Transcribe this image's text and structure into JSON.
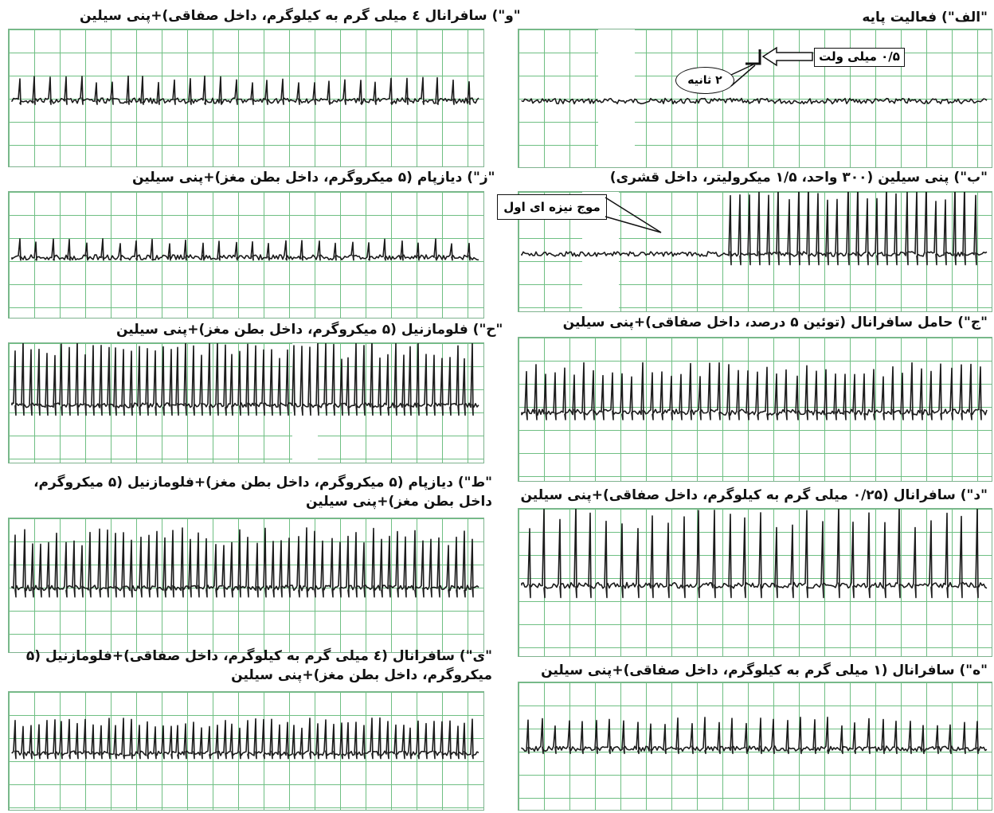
{
  "chart_data": {
    "type": "line",
    "panels": [
      {
        "id": "alef",
        "caption": "\"الف\") فعالیت پایه",
        "spikes": 0,
        "amp": 0.03
      },
      {
        "id": "be",
        "caption": "\"ب\") پنی سیلین (۳۰۰ واحد، ۱/۵ میکرولیتر، داخل قشری)",
        "spikes": 26,
        "amp": 0.6
      },
      {
        "id": "jim",
        "caption": "\"ج\") حامل سافرانال (توئین ۵ درصد، داخل صفاقی)+پنی سیلین",
        "spikes": 48,
        "amp": 0.35
      },
      {
        "id": "dal",
        "caption": "\"د\") سافرانال (۰/۲۵ میلی گرم به کیلوگرم، داخل صفاقی)+پنی سیلین",
        "spikes": 30,
        "amp": 0.55
      },
      {
        "id": "he",
        "caption": "\"ه\") سافرانال (۱ میلی گرم به کیلوگرم، داخل صفاقی)+پنی سیلین",
        "spikes": 34,
        "amp": 0.25
      },
      {
        "id": "vav",
        "caption": "\"و\") سافرانال ٤ میلی گرم به کیلوگرم، داخل صفاقی)+پنی سیلین",
        "spikes": 30,
        "amp": 0.18
      },
      {
        "id": "ze",
        "caption": "\"ز\") دیازپام (۵ میکروگرم، داخل بطن مغز)+پنی سیلین",
        "spikes": 28,
        "amp": 0.15
      },
      {
        "id": "he2",
        "caption": "\"ح\") فلومازنیل (۵ میکروگرم، داخل بطن مغز)+پنی سیلین",
        "spikes": 60,
        "amp": 0.55
      },
      {
        "id": "ta",
        "caption": "\"ط\") دیازپام (۵ میکروگرم، داخل بطن مغز)+فلومازنیل (۵ میکروگرم، داخل بطن مغز)+پنی سیلین",
        "spikes": 56,
        "amp": 0.45
      },
      {
        "id": "ye",
        "caption": "\"ی\") سافرانال (٤ میلی گرم به کیلوگرم، داخل صفاقی)+فلومازنیل (۵ میکروگرم، داخل بطن مغز)+پنی سیلین",
        "spikes": 60,
        "amp": 0.3
      }
    ],
    "annotations": {
      "scale_voltage": "۰/۵ میلی ولت",
      "scale_time": "۲ ثانیه",
      "first_spike": "موج نیزه ای اول"
    }
  }
}
